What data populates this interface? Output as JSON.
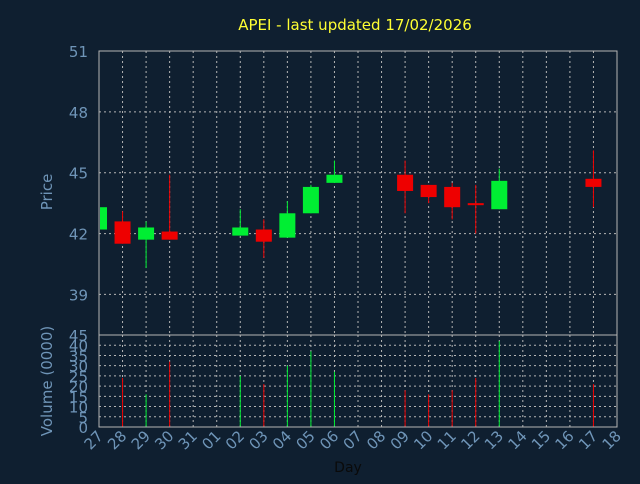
{
  "colors": {
    "background": "#0f1f30",
    "title": "#ffff33",
    "axis_text": "#6f95b8",
    "plot_bg": "#0f1f30",
    "grid": "#b5b5b5",
    "up": "#00ee33",
    "down": "#ee0000"
  },
  "chart_data": [
    {
      "type": "candlestick",
      "title": "APEI - last updated 17/02/2026",
      "ylabel": "Price",
      "ylim": [
        37,
        51
      ],
      "yticks": [
        39,
        42,
        45,
        48,
        51
      ],
      "grid": true,
      "x": [
        "27",
        "28",
        "29",
        "30",
        "31",
        "01",
        "02",
        "03",
        "04",
        "05",
        "06",
        "07",
        "08",
        "09",
        "10",
        "11",
        "12",
        "13",
        "14",
        "15",
        "16",
        "17",
        "18"
      ],
      "candles": [
        {
          "day": "27",
          "open": 42.2,
          "high": 43.3,
          "low": 42.2,
          "close": 43.3
        },
        {
          "day": "28",
          "open": 42.6,
          "high": 43.1,
          "low": 41.5,
          "close": 41.5
        },
        {
          "day": "29",
          "open": 41.7,
          "high": 42.6,
          "low": 40.3,
          "close": 42.3
        },
        {
          "day": "30",
          "open": 42.1,
          "high": 44.9,
          "low": 41.7,
          "close": 41.7
        },
        {
          "day": "02",
          "open": 41.9,
          "high": 43.2,
          "low": 41.9,
          "close": 42.3
        },
        {
          "day": "03",
          "open": 42.2,
          "high": 42.7,
          "low": 40.8,
          "close": 41.6
        },
        {
          "day": "04",
          "open": 41.8,
          "high": 43.6,
          "low": 41.8,
          "close": 43.0
        },
        {
          "day": "05",
          "open": 43.0,
          "high": 44.4,
          "low": 43.0,
          "close": 44.3
        },
        {
          "day": "06",
          "open": 44.5,
          "high": 45.6,
          "low": 44.5,
          "close": 44.9
        },
        {
          "day": "09",
          "open": 44.9,
          "high": 45.6,
          "low": 43.0,
          "close": 44.1
        },
        {
          "day": "10",
          "open": 44.4,
          "high": 44.4,
          "low": 43.5,
          "close": 43.8
        },
        {
          "day": "11",
          "open": 44.3,
          "high": 44.5,
          "low": 42.7,
          "close": 43.3
        },
        {
          "day": "12",
          "open": 43.5,
          "high": 44.4,
          "low": 42.0,
          "close": 43.4
        },
        {
          "day": "13",
          "open": 43.2,
          "high": 45.2,
          "low": 43.2,
          "close": 44.6
        },
        {
          "day": "17",
          "open": 44.7,
          "high": 46.1,
          "low": 43.3,
          "close": 44.3
        }
      ]
    },
    {
      "type": "bar",
      "ylabel": "Volume (0000)",
      "xlabel": "Day",
      "ylim": [
        0,
        45
      ],
      "yticks": [
        0,
        5,
        10,
        15,
        20,
        25,
        30,
        35,
        40,
        45
      ],
      "grid": true,
      "categories": [
        "28",
        "29",
        "30",
        "02",
        "03",
        "04",
        "05",
        "06",
        "09",
        "10",
        "11",
        "12",
        "13",
        "17"
      ],
      "values": [
        24,
        16,
        32,
        25,
        21,
        30,
        37,
        27,
        18,
        16,
        18,
        24,
        42,
        21
      ],
      "directions": [
        "down",
        "up",
        "down",
        "up",
        "down",
        "up",
        "up",
        "up",
        "down",
        "down",
        "down",
        "down",
        "up",
        "down"
      ]
    }
  ]
}
